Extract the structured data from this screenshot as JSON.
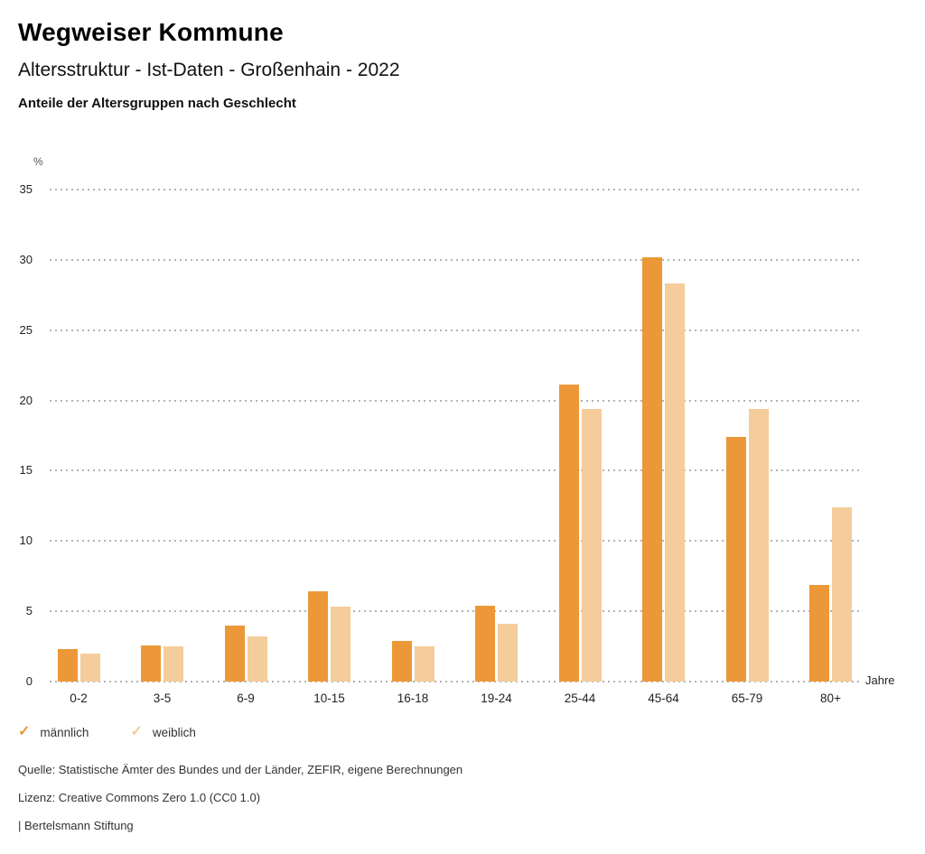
{
  "header": {
    "title": "Wegweiser Kommune",
    "subtitle": "Altersstruktur - Ist-Daten - Großenhain - 2022",
    "heading": "Anteile der Altersgruppen nach Geschlecht"
  },
  "chart_data": {
    "type": "bar",
    "title": "Anteile der Altersgruppen nach Geschlecht",
    "categories": [
      "0-2",
      "3-5",
      "6-9",
      "10-15",
      "16-18",
      "19-24",
      "25-44",
      "45-64",
      "65-79",
      "80+"
    ],
    "series": [
      {
        "name": "männlich",
        "color": "#EC9838",
        "values": [
          2.3,
          2.6,
          4.0,
          6.4,
          2.9,
          5.4,
          21.1,
          30.2,
          17.4,
          6.9
        ]
      },
      {
        "name": "weiblich",
        "color": "#F5CC9B",
        "values": [
          2.0,
          2.5,
          3.2,
          5.3,
          2.5,
          4.1,
          19.4,
          28.3,
          19.4,
          12.4
        ]
      }
    ],
    "y_unit": "%",
    "x_unit": "Jahre",
    "ylim": [
      0,
      35
    ],
    "y_ticks": [
      0,
      5,
      10,
      15,
      20,
      25,
      30,
      35
    ],
    "grid": "horizontal-dotted",
    "legend_position": "bottom-left"
  },
  "legend": {
    "items": [
      {
        "label": "männlich",
        "icon": "check",
        "color": "#EC9838"
      },
      {
        "label": "weiblich",
        "icon": "check",
        "color": "#F5CC9B"
      }
    ]
  },
  "footer": {
    "source": "Quelle: Statistische Ämter des Bundes und der Länder, ZEFIR, eigene Berechnungen",
    "license": "Lizenz: Creative Commons Zero 1.0 (CC0 1.0)",
    "attribution": "| Bertelsmann Stiftung"
  }
}
